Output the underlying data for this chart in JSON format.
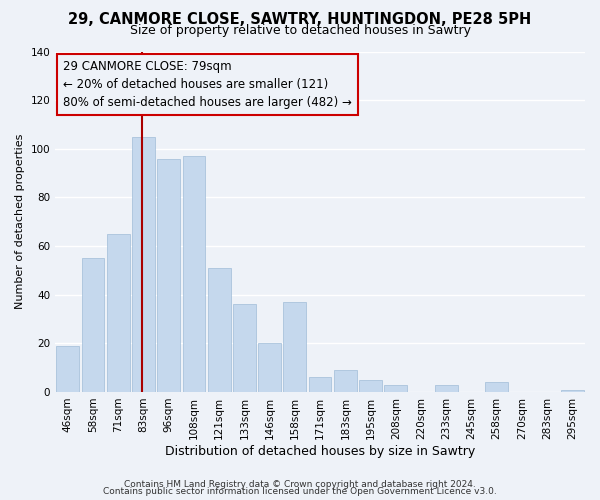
{
  "title": "29, CANMORE CLOSE, SAWTRY, HUNTINGDON, PE28 5PH",
  "subtitle": "Size of property relative to detached houses in Sawtry",
  "xlabel": "Distribution of detached houses by size in Sawtry",
  "ylabel": "Number of detached properties",
  "categories": [
    "46sqm",
    "58sqm",
    "71sqm",
    "83sqm",
    "96sqm",
    "108sqm",
    "121sqm",
    "133sqm",
    "146sqm",
    "158sqm",
    "171sqm",
    "183sqm",
    "195sqm",
    "208sqm",
    "220sqm",
    "233sqm",
    "245sqm",
    "258sqm",
    "270sqm",
    "283sqm",
    "295sqm"
  ],
  "values": [
    19,
    55,
    65,
    105,
    96,
    97,
    51,
    36,
    20,
    37,
    6,
    9,
    5,
    3,
    0,
    3,
    0,
    4,
    0,
    0,
    1
  ],
  "bar_color": "#c5d8ed",
  "bar_edge_color": "#a0bcd8",
  "vline_x_index": 2.93,
  "vline_color": "#aa0000",
  "annotation_text": "29 CANMORE CLOSE: 79sqm\n← 20% of detached houses are smaller (121)\n80% of semi-detached houses are larger (482) →",
  "annotation_box_edgecolor": "#cc0000",
  "annotation_fontsize": 8.5,
  "ylim": [
    0,
    140
  ],
  "yticks": [
    0,
    20,
    40,
    60,
    80,
    100,
    120,
    140
  ],
  "footnote1": "Contains HM Land Registry data © Crown copyright and database right 2024.",
  "footnote2": "Contains public sector information licensed under the Open Government Licence v3.0.",
  "background_color": "#eef2f8",
  "grid_color": "#ffffff",
  "title_fontsize": 10.5,
  "subtitle_fontsize": 9,
  "xlabel_fontsize": 9,
  "ylabel_fontsize": 8,
  "tick_fontsize": 7.5,
  "footnote_fontsize": 6.5
}
